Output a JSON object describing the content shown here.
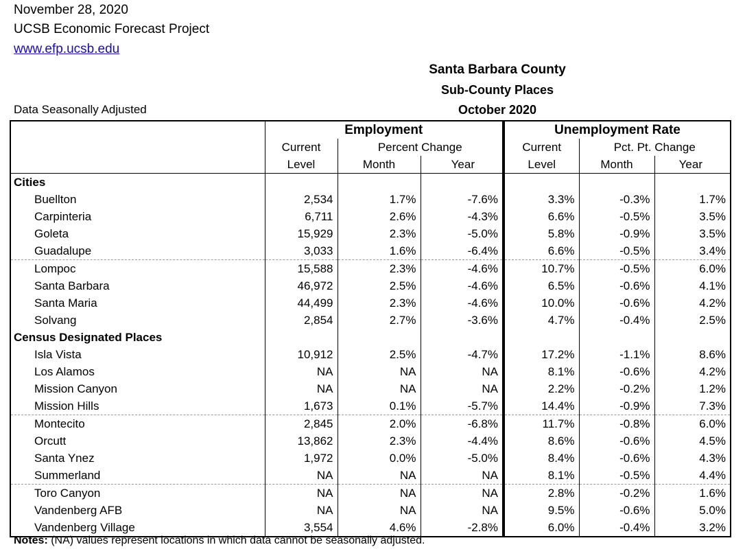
{
  "header": {
    "date": "November 28, 2020",
    "org": "UCSB Economic Forecast Project",
    "url": "www.efp.ucsb.edu"
  },
  "title": {
    "line1": "Santa Barbara County",
    "line2": "Sub-County Places",
    "line3": "October 2020"
  },
  "seasonal_note": "Data Seasonally Adjusted",
  "table": {
    "group_employment": "Employment",
    "group_unemployment": "Unemployment Rate",
    "sub_current": "Current",
    "sub_percent_change": "Percent Change",
    "sub_pct_pt_change": "Pct. Pt. Change",
    "sub_level": "Level",
    "sub_month": "Month",
    "sub_year": "Year",
    "section_cities": "Cities",
    "section_cdp": "Census Designated Places",
    "cities": [
      {
        "name": "Buellton",
        "emp": "2,534",
        "emp_m": "1.7%",
        "emp_y": "-7.6%",
        "ur": "3.3%",
        "ur_m": "-0.3%",
        "ur_y": "1.7%"
      },
      {
        "name": "Carpinteria",
        "emp": "6,711",
        "emp_m": "2.6%",
        "emp_y": "-4.3%",
        "ur": "6.6%",
        "ur_m": "-0.5%",
        "ur_y": "3.5%"
      },
      {
        "name": "Goleta",
        "emp": "15,929",
        "emp_m": "2.3%",
        "emp_y": "-5.0%",
        "ur": "5.8%",
        "ur_m": "-0.9%",
        "ur_y": "3.5%"
      },
      {
        "name": "Guadalupe",
        "emp": "3,033",
        "emp_m": "1.6%",
        "emp_y": "-6.4%",
        "ur": "6.6%",
        "ur_m": "-0.5%",
        "ur_y": "3.4%"
      },
      {
        "name": "Lompoc",
        "emp": "15,588",
        "emp_m": "2.3%",
        "emp_y": "-4.6%",
        "ur": "10.7%",
        "ur_m": "-0.5%",
        "ur_y": "6.0%"
      },
      {
        "name": "Santa Barbara",
        "emp": "46,972",
        "emp_m": "2.5%",
        "emp_y": "-4.6%",
        "ur": "6.5%",
        "ur_m": "-0.6%",
        "ur_y": "4.1%"
      },
      {
        "name": "Santa Maria",
        "emp": "44,499",
        "emp_m": "2.3%",
        "emp_y": "-4.6%",
        "ur": "10.0%",
        "ur_m": "-0.6%",
        "ur_y": "4.2%"
      },
      {
        "name": "Solvang",
        "emp": "2,854",
        "emp_m": "2.7%",
        "emp_y": "-3.6%",
        "ur": "4.7%",
        "ur_m": "-0.4%",
        "ur_y": "2.5%"
      }
    ],
    "cdp": [
      {
        "name": "Isla Vista",
        "emp": "10,912",
        "emp_m": "2.5%",
        "emp_y": "-4.7%",
        "ur": "17.2%",
        "ur_m": "-1.1%",
        "ur_y": "8.6%"
      },
      {
        "name": "Los Alamos",
        "emp": "NA",
        "emp_m": "NA",
        "emp_y": "NA",
        "ur": "8.1%",
        "ur_m": "-0.6%",
        "ur_y": "4.2%"
      },
      {
        "name": "Mission Canyon",
        "emp": "NA",
        "emp_m": "NA",
        "emp_y": "NA",
        "ur": "2.2%",
        "ur_m": "-0.2%",
        "ur_y": "1.2%"
      },
      {
        "name": "Mission Hills",
        "emp": "1,673",
        "emp_m": "0.1%",
        "emp_y": "-5.7%",
        "ur": "14.4%",
        "ur_m": "-0.9%",
        "ur_y": "7.3%"
      },
      {
        "name": "Montecito",
        "emp": "2,845",
        "emp_m": "2.0%",
        "emp_y": "-6.8%",
        "ur": "11.7%",
        "ur_m": "-0.8%",
        "ur_y": "6.0%"
      },
      {
        "name": "Orcutt",
        "emp": "13,862",
        "emp_m": "2.3%",
        "emp_y": "-4.4%",
        "ur": "8.6%",
        "ur_m": "-0.6%",
        "ur_y": "4.5%"
      },
      {
        "name": "Santa Ynez",
        "emp": "1,972",
        "emp_m": "0.0%",
        "emp_y": "-5.0%",
        "ur": "8.4%",
        "ur_m": "-0.6%",
        "ur_y": "4.3%"
      },
      {
        "name": "Summerland",
        "emp": "NA",
        "emp_m": "NA",
        "emp_y": "NA",
        "ur": "8.1%",
        "ur_m": "-0.5%",
        "ur_y": "4.4%"
      },
      {
        "name": "Toro Canyon",
        "emp": "NA",
        "emp_m": "NA",
        "emp_y": "NA",
        "ur": "2.8%",
        "ur_m": "-0.2%",
        "ur_y": "1.6%"
      },
      {
        "name": "Vandenberg AFB",
        "emp": "NA",
        "emp_m": "NA",
        "emp_y": "NA",
        "ur": "9.5%",
        "ur_m": "-0.6%",
        "ur_y": "5.0%"
      },
      {
        "name": "Vandenberg Village",
        "emp": "3,554",
        "emp_m": "4.6%",
        "emp_y": "-2.8%",
        "ur": "6.0%",
        "ur_m": "-0.4%",
        "ur_y": "3.2%"
      }
    ]
  },
  "notes": {
    "label": "Notes:",
    "text": " (NA) values represent locations in which data cannot be seasonally adjusted."
  }
}
